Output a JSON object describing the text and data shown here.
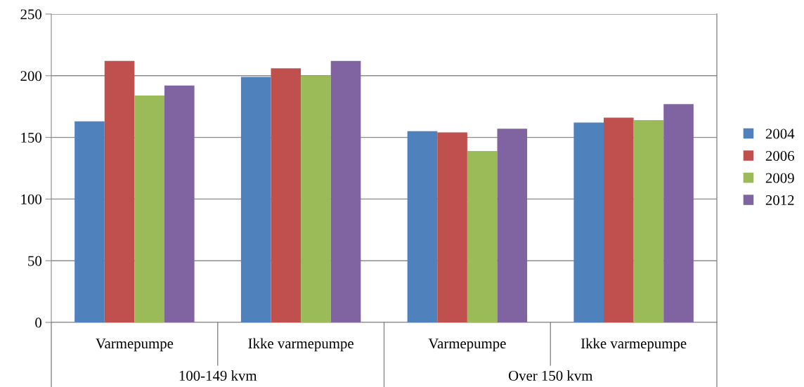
{
  "chart_data": {
    "type": "bar",
    "categories": [
      "Varmepumpe",
      "Ikke varmepumpe",
      "Varmepumpe",
      "Ikke varmepumpe"
    ],
    "series": [
      {
        "name": "2004",
        "color": "#4f81bd",
        "values": [
          163,
          199,
          155,
          162
        ]
      },
      {
        "name": "2006",
        "color": "#c0504d",
        "values": [
          212,
          206,
          154,
          166
        ]
      },
      {
        "name": "2009",
        "color": "#9bbb59",
        "values": [
          184,
          200,
          139,
          164
        ]
      },
      {
        "name": "2012",
        "color": "#8064a2",
        "values": [
          192,
          212,
          157,
          177
        ]
      }
    ],
    "annotations": [
      "100-149 kvm",
      "Over 150 kvm"
    ],
    "ylim": [
      0,
      250
    ],
    "yticks": [
      0,
      50,
      100,
      150,
      200,
      250
    ],
    "grid": "y",
    "legend": "right"
  }
}
